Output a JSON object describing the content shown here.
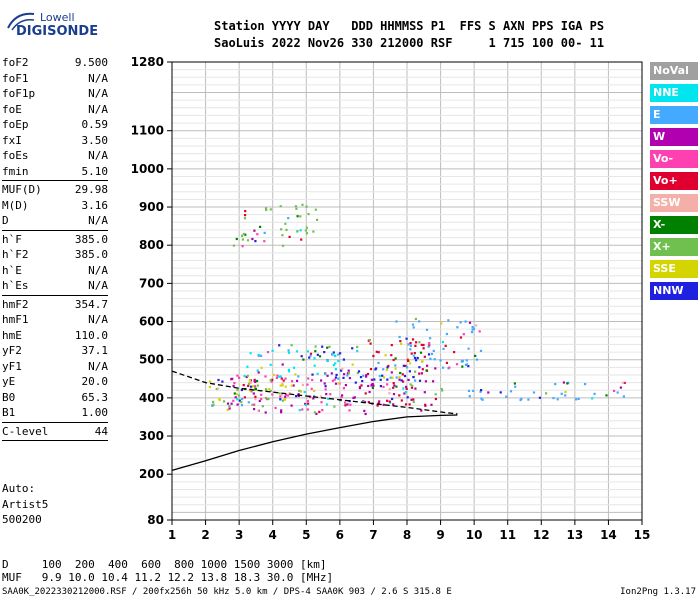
{
  "logo": {
    "line1": "Lowell",
    "line2": "DIGISONDE"
  },
  "header": {
    "line1": "Station YYYY DAY   DDD HHMMSS P1  FFS S AXN PPS IGA PS",
    "line2": "SaoLuis 2022 Nov26 330 212000 RSF     1 715 100 00- 11"
  },
  "params": [
    [
      {
        "name": "foF2",
        "value": "9.500"
      },
      {
        "name": "foF1",
        "value": "N/A"
      },
      {
        "name": "foF1p",
        "value": "N/A"
      },
      {
        "name": "foE",
        "value": "N/A"
      },
      {
        "name": "foEp",
        "value": "0.59"
      },
      {
        "name": "fxI",
        "value": "3.50"
      },
      {
        "name": "foEs",
        "value": "N/A"
      },
      {
        "name": "fmin",
        "value": "5.10"
      }
    ],
    [
      {
        "name": "MUF(D)",
        "value": "29.98"
      },
      {
        "name": "M(D)",
        "value": "3.16"
      },
      {
        "name": "D",
        "value": "N/A"
      }
    ],
    [
      {
        "name": "h`F",
        "value": "385.0"
      },
      {
        "name": "h`F2",
        "value": "385.0"
      },
      {
        "name": "h`E",
        "value": "N/A"
      },
      {
        "name": "h`Es",
        "value": "N/A"
      }
    ],
    [
      {
        "name": "hmF2",
        "value": "354.7"
      },
      {
        "name": "hmF1",
        "value": "N/A"
      },
      {
        "name": "hmE",
        "value": "110.0"
      },
      {
        "name": "yF2",
        "value": "37.1"
      },
      {
        "name": "yF1",
        "value": "N/A"
      },
      {
        "name": "yE",
        "value": "20.0"
      },
      {
        "name": "B0",
        "value": "65.3"
      },
      {
        "name": "B1",
        "value": "1.00"
      }
    ],
    [
      {
        "name": "C-level",
        "value": "44"
      }
    ]
  ],
  "extra": {
    "label": "Auto:",
    "software": "Artist5",
    "code": "500200"
  },
  "legend": [
    {
      "label": "NoVal",
      "color": "#a0a0a0"
    },
    {
      "label": "NNE",
      "color": "#00e5ee"
    },
    {
      "label": "E",
      "color": "#44aaff"
    },
    {
      "label": "W",
      "color": "#b000b0"
    },
    {
      "label": "Vo-",
      "color": "#ff40b0"
    },
    {
      "label": "Vo+",
      "color": "#e00030"
    },
    {
      "label": "SSW",
      "color": "#f4b0a8"
    },
    {
      "label": "X-",
      "color": "#008000"
    },
    {
      "label": "X+",
      "color": "#70c050"
    },
    {
      "label": "SSE",
      "color": "#d4d400"
    },
    {
      "label": "NNW",
      "color": "#2020e0"
    }
  ],
  "footer": {
    "line1": "D     100  200  400  600  800 1000 1500 3000 [km]",
    "line2": "MUF   9.9 10.0 10.4 11.2 12.2 13.8 18.3 30.0 [MHz]",
    "bottom": "SAA0K_2022330212000.RSF / 200fx256h 50 kHz 5.0 km / DPS-4 SAA0K 903 / 2.6 S 315.8 E",
    "version": "Ion2Png 1.3.17"
  },
  "chart_data": {
    "type": "scatter",
    "xlabel": "",
    "ylabel": "",
    "x_ticks": [
      "1",
      "2",
      "3",
      "4",
      "5",
      "6",
      "7",
      "8",
      "9",
      "10",
      "11",
      "12",
      "13",
      "14",
      "15"
    ],
    "xlim": [
      1,
      15
    ],
    "ylim": [
      80,
      1280
    ],
    "y_ticks": [
      {
        "value": 80,
        "label": "80"
      },
      {
        "value": 200,
        "label": "200"
      },
      {
        "value": 300,
        "label": "300"
      },
      {
        "value": 400,
        "label": "400"
      },
      {
        "value": 500,
        "label": "500"
      },
      {
        "value": 600,
        "label": "600"
      },
      {
        "value": 700,
        "label": "700"
      },
      {
        "value": 800,
        "label": "800"
      },
      {
        "value": 900,
        "label": "900"
      },
      {
        "value": 1000,
        "label": "1000"
      },
      {
        "value": 1100,
        "label": "1100"
      },
      {
        "value": 1280,
        "label": "1280"
      }
    ],
    "grid": true,
    "profile": [
      [
        1.0,
        210
      ],
      [
        2.0,
        235
      ],
      [
        3.0,
        262
      ],
      [
        4.0,
        285
      ],
      [
        5.0,
        305
      ],
      [
        6.0,
        322
      ],
      [
        7.0,
        338
      ],
      [
        8.0,
        350
      ],
      [
        9.0,
        354
      ],
      [
        9.5,
        355
      ]
    ],
    "trace_o": [
      [
        1.0,
        470
      ],
      [
        2.0,
        440
      ],
      [
        3.0,
        425
      ],
      [
        4.0,
        415
      ],
      [
        5.0,
        405
      ],
      [
        6.0,
        395
      ],
      [
        7.0,
        385
      ],
      [
        8.0,
        375
      ],
      [
        8.6,
        368
      ],
      [
        9.1,
        362
      ],
      [
        9.5,
        358
      ]
    ],
    "echo_regions": [
      {
        "x0": 2.6,
        "x1": 8.8,
        "h0": 360,
        "h1": 470,
        "color": "#b000b0"
      },
      {
        "x0": 2.8,
        "x1": 6.5,
        "h0": 370,
        "h1": 465,
        "color": "#ff40b0"
      },
      {
        "x0": 6.8,
        "x1": 9.2,
        "h0": 380,
        "h1": 560,
        "color": "#e00030"
      },
      {
        "x0": 1.8,
        "x1": 4.0,
        "h0": 380,
        "h1": 450,
        "color": "#70c050"
      },
      {
        "x0": 2.0,
        "x1": 5.5,
        "h0": 395,
        "h1": 455,
        "color": "#d4d400"
      },
      {
        "x0": 9.8,
        "x1": 14.6,
        "h0": 395,
        "h1": 445,
        "color": "#44aaff"
      },
      {
        "x0": 7.5,
        "x1": 10.2,
        "h0": 480,
        "h1": 610,
        "color": "#44aaff"
      },
      {
        "x0": 3.5,
        "x1": 6.5,
        "h0": 500,
        "h1": 545,
        "color": "#2020e0"
      },
      {
        "x0": 2.8,
        "x1": 5.3,
        "h0": 800,
        "h1": 910,
        "color": "#70c050"
      },
      {
        "x0": 3.2,
        "x1": 6.0,
        "h0": 450,
        "h1": 530,
        "color": "#00e5ee"
      },
      {
        "x0": 5.8,
        "x1": 8.5,
        "h0": 430,
        "h1": 520,
        "color": "#2020e0"
      }
    ]
  }
}
